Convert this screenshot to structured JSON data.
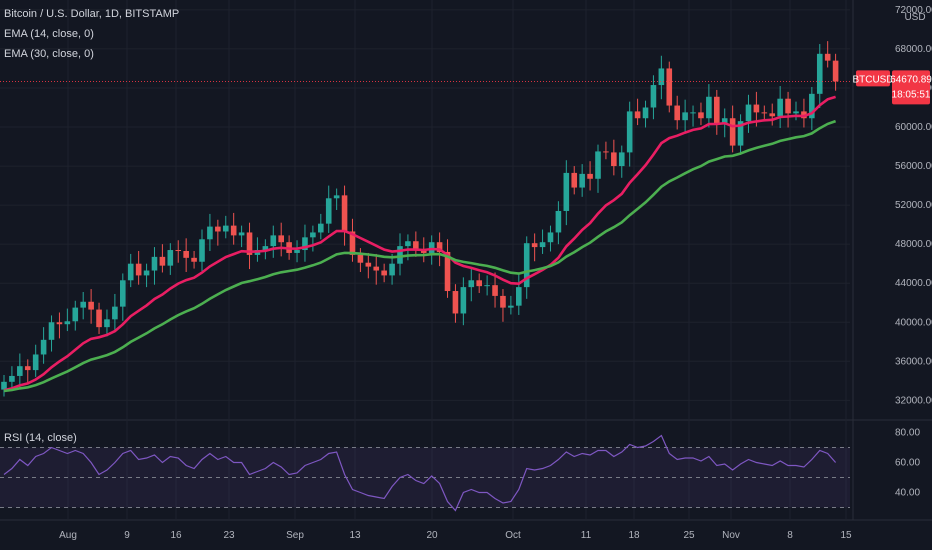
{
  "legend": {
    "title": "Bitcoin / U.S. Dollar, 1D, BITSTAMP",
    "ema14": "EMA (14, close, 0)",
    "ema30": "EMA (30, close, 0)",
    "rsi": "RSI (14, close)"
  },
  "price_badge": {
    "symbol": "BTCUSD",
    "price": "64670.89",
    "countdown": "18:05:51",
    "color": "#f23645"
  },
  "currency_label": "USD",
  "colors": {
    "up": "#26a69a",
    "down": "#ef5350",
    "ema14": "#e91e63",
    "ema30": "#4caf50",
    "rsi": "#7e57c2",
    "background": "#131722"
  },
  "chart_data": {
    "type": "candlestick",
    "title": "Bitcoin / U.S. Dollar, 1D, BITSTAMP",
    "price_axis_labels": [
      "72000.00",
      "68000.00",
      "64000.00",
      "60000.00",
      "56000.00",
      "52000.00",
      "48000.00",
      "44000.00",
      "40000.00",
      "36000.00",
      "32000.00"
    ],
    "ylim": [
      30500,
      72500
    ],
    "x_ticks": [
      "Aug",
      "9",
      "16",
      "23",
      "Sep",
      "13",
      "20",
      "Oct",
      "11",
      "18",
      "25",
      "Nov",
      "8",
      "15"
    ],
    "closes": [
      33900,
      34500,
      35500,
      35100,
      36700,
      38200,
      40000,
      39800,
      40100,
      41500,
      42100,
      41300,
      39500,
      40300,
      41600,
      44300,
      46000,
      44800,
      45300,
      46700,
      45800,
      47400,
      47300,
      46600,
      46200,
      48500,
      49800,
      49300,
      49900,
      48900,
      49200,
      46900,
      47400,
      47800,
      48900,
      48200,
      47100,
      47400,
      48700,
      49200,
      50100,
      52700,
      53000,
      49300,
      46900,
      46100,
      45700,
      45300,
      44800,
      46000,
      47800,
      48300,
      47400,
      47100,
      48200,
      47200,
      43200,
      40900,
      43600,
      44300,
      43700,
      43800,
      42700,
      41500,
      41700,
      43600,
      48100,
      47700,
      48200,
      49200,
      51400,
      55300,
      53800,
      55200,
      54700,
      57500,
      57400,
      56000,
      57400,
      61600,
      60900,
      62000,
      64300,
      66000,
      62200,
      60700,
      61500,
      61500,
      60900,
      63100,
      60400,
      60900,
      58100,
      60600,
      62300,
      61500,
      61400,
      61100,
      62900,
      61400,
      61600,
      60900,
      63400,
      67500,
      66800,
      64670
    ],
    "ema14_start": 32900,
    "ema30_start": 32900,
    "rsi_axis_labels": [
      "80.00",
      "60.00",
      "40.00"
    ],
    "rsi_ylim": [
      25,
      85
    ],
    "rsi_bands": [
      70,
      50,
      30
    ],
    "rsi_values": [
      52,
      56,
      62,
      58,
      64,
      66,
      70,
      68,
      66,
      68,
      66,
      60,
      52,
      55,
      60,
      66,
      68,
      62,
      63,
      65,
      60,
      64,
      63,
      58,
      56,
      62,
      66,
      62,
      64,
      60,
      60,
      52,
      54,
      56,
      60,
      57,
      52,
      53,
      58,
      60,
      62,
      66,
      67,
      52,
      42,
      40,
      38,
      37,
      36,
      44,
      50,
      52,
      48,
      46,
      51,
      46,
      34,
      28,
      40,
      42,
      40,
      40,
      36,
      33,
      34,
      42,
      56,
      55,
      56,
      58,
      62,
      67,
      64,
      66,
      65,
      68,
      68,
      64,
      67,
      72,
      70,
      71,
      74,
      78,
      66,
      62,
      63,
      63,
      61,
      64,
      58,
      59,
      55,
      59,
      62,
      60,
      59,
      58,
      61,
      58,
      58,
      57,
      62,
      68,
      66,
      60
    ]
  }
}
